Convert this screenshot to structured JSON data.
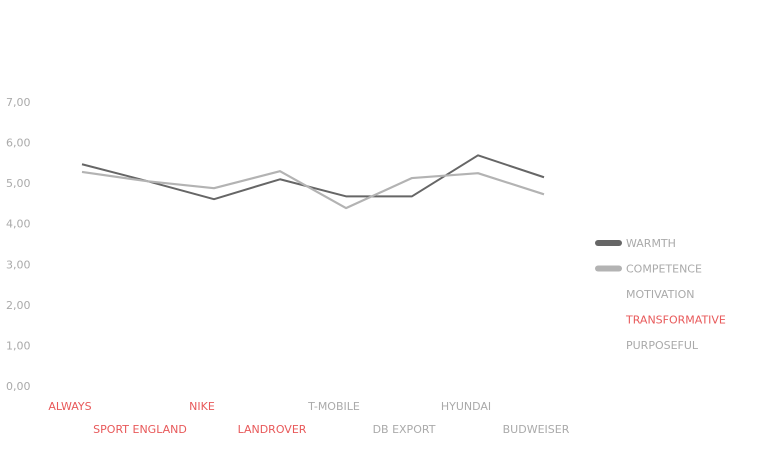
{
  "chart_data": {
    "type": "line",
    "categories": [
      "ALWAYS",
      "SPORT ENGLAND",
      "NIKE",
      "LANDROVER",
      "T-MOBILE",
      "DB EXPORT",
      "HYUNDAI",
      "BUDWEISER"
    ],
    "category_colors": [
      "#e8595a",
      "#e8595a",
      "#e8595a",
      "#e8595a",
      "#aaaaaa",
      "#aaaaaa",
      "#aaaaaa",
      "#aaaaaa"
    ],
    "series": [
      {
        "name": "WARMTH",
        "color": "#666666",
        "values": [
          5.49,
          5.07,
          4.63,
          5.12,
          4.7,
          4.7,
          5.71,
          5.17
        ]
      },
      {
        "name": "COMPETENCE",
        "color": "#b3b3b3",
        "values": [
          5.3,
          5.07,
          4.9,
          5.32,
          4.41,
          5.15,
          5.27,
          4.75
        ]
      }
    ],
    "legend_groups": [
      {
        "name": "MOTIVATION",
        "color": "#aaaaaa"
      },
      {
        "name": "TRANSFORMATIVE",
        "color": "#e8595a"
      },
      {
        "name": "PURPOSEFUL",
        "color": "#aaaaaa"
      }
    ],
    "ylim": [
      0,
      7
    ],
    "yticks": [
      {
        "value": 0,
        "label": "0,00"
      },
      {
        "value": 1,
        "label": "1,00"
      },
      {
        "value": 2,
        "label": "2,00"
      },
      {
        "value": 3,
        "label": "3,00"
      },
      {
        "value": 4,
        "label": "4,00"
      },
      {
        "value": 5,
        "label": "5,00"
      },
      {
        "value": 6,
        "label": "6,00"
      },
      {
        "value": 7,
        "label": "7,00"
      }
    ],
    "legend": "right"
  }
}
